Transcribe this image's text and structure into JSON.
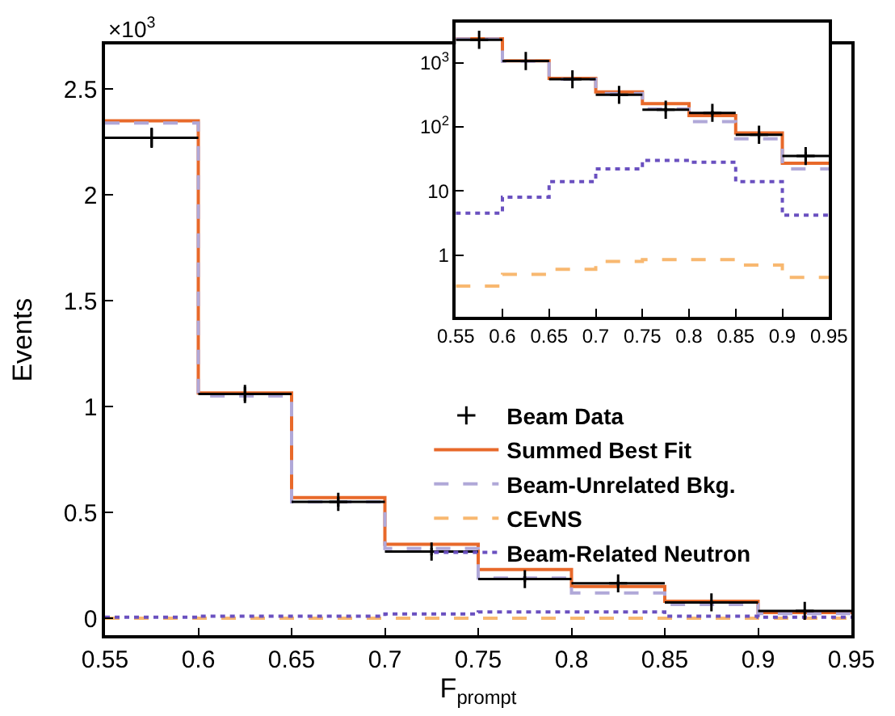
{
  "chart_data": [
    {
      "type": "histogram",
      "xlabel": "F$_{prompt}$",
      "ylabel": "Events",
      "annotations": [
        "×10$^{3}$"
      ],
      "bins": [
        0.55,
        0.6,
        0.65,
        0.7,
        0.75,
        0.8,
        0.85,
        0.9,
        0.95
      ],
      "xlim": [
        0.55,
        0.95
      ],
      "xticks": [
        0.55,
        0.6,
        0.65,
        0.7,
        0.75,
        0.8,
        0.85,
        0.9,
        0.95
      ],
      "ylim": [
        -0.08,
        2.71
      ],
      "yticks": [
        0,
        0.5,
        1,
        1.5,
        2,
        2.5
      ],
      "grid": false,
      "legend": "right",
      "series": [
        {
          "name": "Beam Data",
          "type": "scatter",
          "color": "#000000",
          "marker": "cross",
          "x": [
            0.575,
            0.625,
            0.675,
            0.725,
            0.775,
            0.825,
            0.875,
            0.925
          ],
          "values": [
            2.27,
            1.06,
            0.55,
            0.315,
            0.185,
            0.165,
            0.075,
            0.035
          ],
          "errors": [
            0.048,
            0.033,
            0.023,
            0.018,
            0.014,
            0.013,
            0.009,
            0.006
          ],
          "xerrors": [
            0.025,
            0.025,
            0.025,
            0.025,
            0.025,
            0.025,
            0.025,
            0.025
          ]
        },
        {
          "name": "Summed Best Fit",
          "color": "#e8692a",
          "line_style": "solid",
          "values": [
            2.35,
            1.065,
            0.57,
            0.35,
            0.23,
            0.15,
            0.08,
            0.027
          ]
        },
        {
          "name": "Beam-Unrelated Bkg.",
          "color": "#b0a8d8",
          "line_style": "dashed",
          "values": [
            2.34,
            1.05,
            0.55,
            0.33,
            0.19,
            0.12,
            0.065,
            0.022
          ]
        },
        {
          "name": "CEvNS",
          "color": "#f8b870",
          "line_style": "dashed",
          "values": [
            0,
            0,
            0,
            0,
            0,
            0,
            0,
            0
          ]
        },
        {
          "name": "Beam-Related Neutron",
          "color": "#6a50c0",
          "line_style": "dotted",
          "values": [
            0.005,
            0.01,
            0.01,
            0.02,
            0.03,
            0.03,
            0.01,
            0.005
          ]
        }
      ]
    },
    {
      "type": "histogram",
      "log": "y",
      "bins": [
        0.55,
        0.6,
        0.65,
        0.7,
        0.75,
        0.8,
        0.85,
        0.9,
        0.95
      ],
      "xlim": [
        0.55,
        0.95
      ],
      "xticks": [
        0.55,
        0.6,
        0.65,
        0.7,
        0.75,
        0.8,
        0.85,
        0.9,
        0.95
      ],
      "ylim": [
        0.11,
        4200
      ],
      "yticks": [
        1,
        10,
        {
          "value": 100,
          "label": "10$^{2}$"
        },
        {
          "value": 1000,
          "label": "10$^{3}$"
        }
      ],
      "grid": false,
      "legend": false,
      "series": [
        {
          "type": "scatter",
          "color": "#000000",
          "marker": "cross",
          "x": [
            0.575,
            0.625,
            0.675,
            0.725,
            0.775,
            0.825,
            0.875,
            0.925
          ],
          "values": [
            2270,
            1060,
            550,
            315,
            185,
            165,
            75,
            35
          ],
          "errors": [
            48,
            33,
            23,
            18,
            14,
            13,
            9,
            6
          ],
          "xerrors": [
            0.025,
            0.025,
            0.025,
            0.025,
            0.025,
            0.025,
            0.025,
            0.025
          ]
        },
        {
          "color": "#e8692a",
          "line_style": "solid",
          "values": [
            2350,
            1065,
            570,
            350,
            230,
            150,
            80,
            27
          ]
        },
        {
          "color": "#b0a8d8",
          "line_style": "dashed",
          "values": [
            2340,
            1050,
            550,
            330,
            190,
            120,
            65,
            22
          ]
        },
        {
          "color": "#f8b870",
          "line_style": "dashed",
          "values": [
            0.33,
            0.5,
            0.6,
            0.8,
            0.85,
            0.85,
            0.7,
            0.45
          ]
        },
        {
          "color": "#6a50c0",
          "line_style": "dotted",
          "values": [
            4.5,
            8,
            14,
            22,
            30,
            28,
            14,
            4.2
          ]
        }
      ]
    }
  ]
}
